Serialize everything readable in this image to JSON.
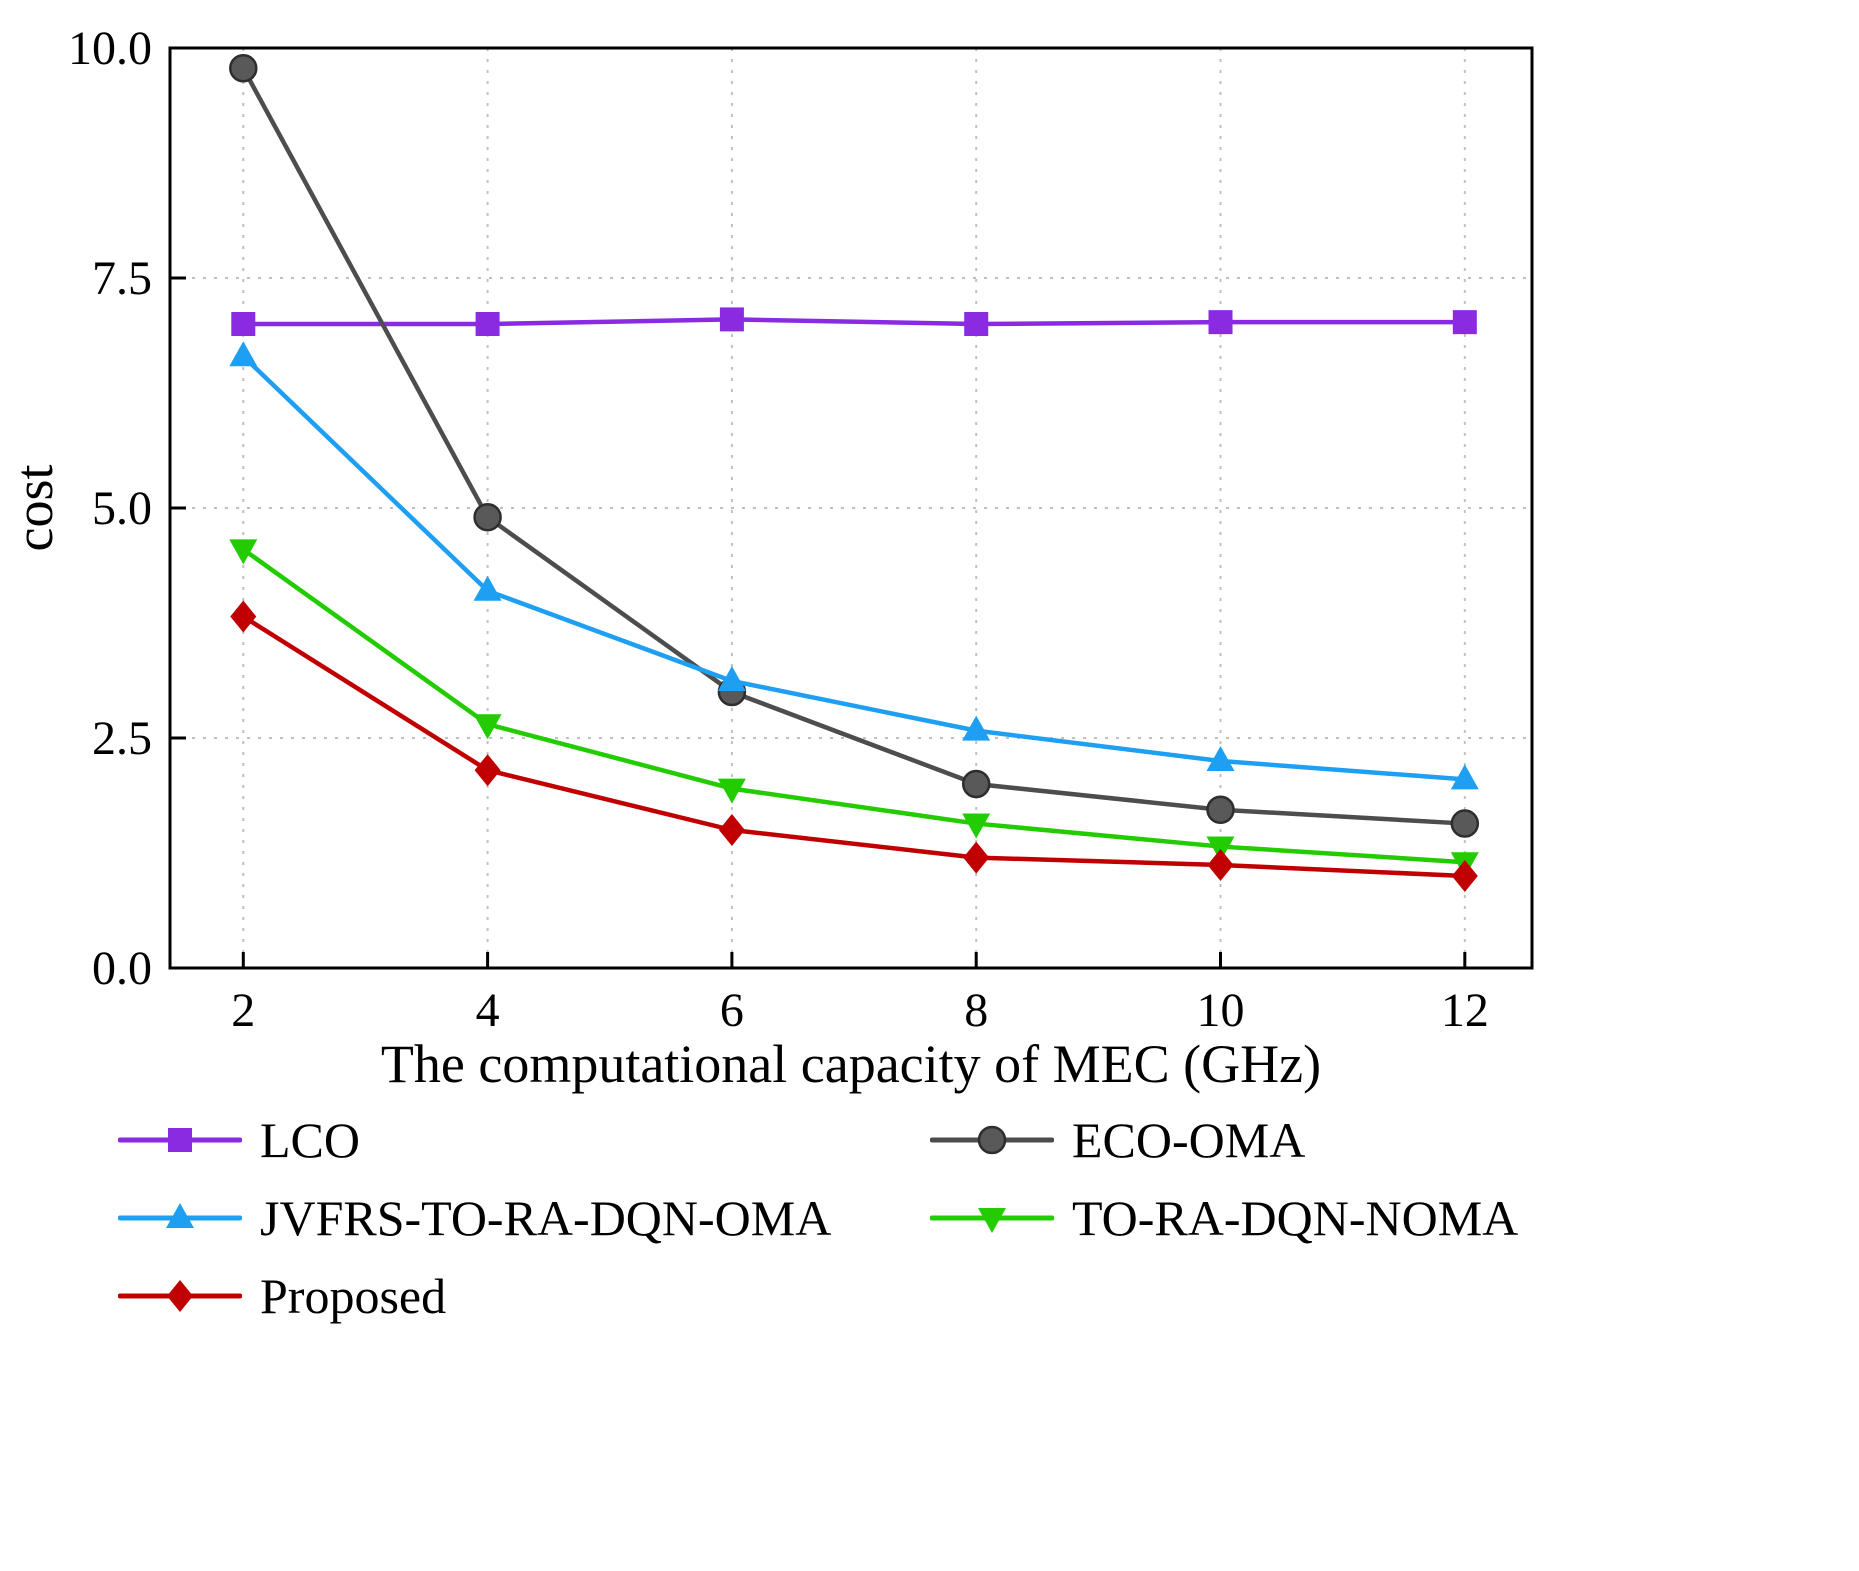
{
  "chart_data": {
    "type": "line",
    "x": [
      2,
      4,
      6,
      8,
      10,
      12
    ],
    "series": [
      {
        "name": "LCO",
        "color": "#8A2BE2",
        "marker": "square",
        "values": [
          7.0,
          7.0,
          7.05,
          7.0,
          7.02,
          7.02
        ]
      },
      {
        "name": "ECO-OMA",
        "color": "#4D4D4D",
        "marker": "circle",
        "values": [
          9.78,
          4.9,
          3.0,
          2.0,
          1.72,
          1.57
        ]
      },
      {
        "name": "JVFRS-TO-RA-DQN-OMA",
        "color": "#1E9FF2",
        "marker": "triangle-up",
        "values": [
          6.65,
          4.1,
          3.12,
          2.58,
          2.25,
          2.05
        ]
      },
      {
        "name": "TO-RA-DQN-NOMA",
        "color": "#22CC00",
        "marker": "triangle-down",
        "values": [
          4.55,
          2.65,
          1.95,
          1.57,
          1.32,
          1.15
        ]
      },
      {
        "name": "Proposed",
        "color": "#C00000",
        "marker": "diamond",
        "values": [
          3.82,
          2.15,
          1.5,
          1.2,
          1.12,
          1.0
        ]
      }
    ],
    "title": "",
    "xlabel": "The computational capacity of MEC (GHz)",
    "ylabel": "cost",
    "xlim": [
      1.4,
      12.55
    ],
    "ylim": [
      0,
      10
    ],
    "xticks": [
      2,
      4,
      6,
      8,
      10,
      12
    ],
    "xtick_labels": [
      "2",
      "4",
      "6",
      "8",
      "10",
      "12"
    ],
    "yticks": [
      0.0,
      2.5,
      5.0,
      7.5,
      10.0
    ],
    "ytick_labels": [
      "0.0",
      "2.5",
      "5.0",
      "7.5",
      "10.0"
    ],
    "grid": "dotted",
    "grid_color": "#c0c0c0",
    "axis_color": "#000000",
    "legend_position": "below-left, two columns"
  }
}
